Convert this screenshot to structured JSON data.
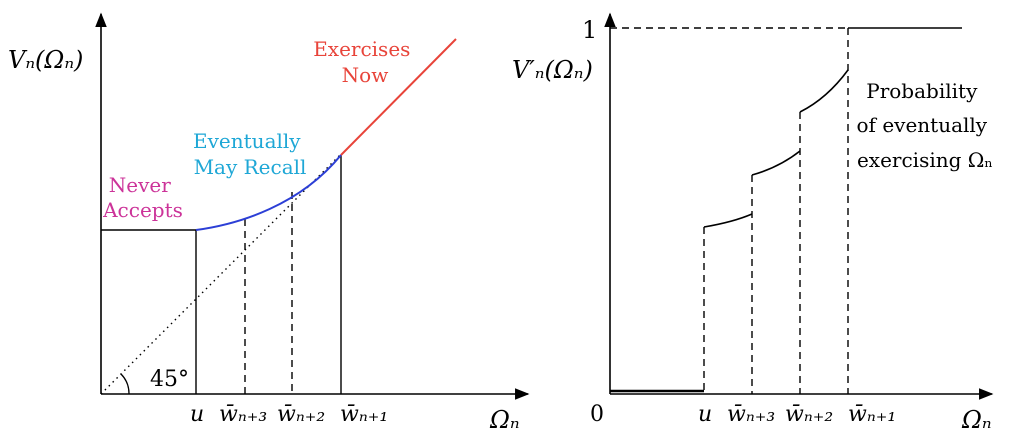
{
  "colors": {
    "never_accepts": "#cc3399",
    "eventually_may_recall": "#1ea7d6",
    "exercises_now": "#e8443a",
    "curve_blue": "#2c3fd6",
    "ink": "#000000"
  },
  "left_panel": {
    "y_axis_label": "Vₙ(Ωₙ)",
    "x_axis_label": "Ωₙ",
    "angle_label": "45°",
    "ticks": [
      "u",
      "w̄ₙ₊₃",
      "w̄ₙ₊₂",
      "w̄ₙ₊₁"
    ],
    "region_labels": {
      "never_accepts": [
        "Never",
        "Accepts"
      ],
      "eventually_may_recall": [
        "Eventually",
        "May Recall"
      ],
      "exercises_now": [
        "Exercises",
        "Now"
      ]
    }
  },
  "right_panel": {
    "y_axis_label": "V′ₙ(Ωₙ)",
    "x_axis_label": "Ωₙ",
    "y_tick_top": "1",
    "origin_label": "0",
    "ticks": [
      "u",
      "w̄ₙ₊₃",
      "w̄ₙ₊₂",
      "w̄ₙ₊₁"
    ],
    "annotation": [
      "Probability",
      "of eventually",
      "exercising Ωₙ"
    ]
  }
}
